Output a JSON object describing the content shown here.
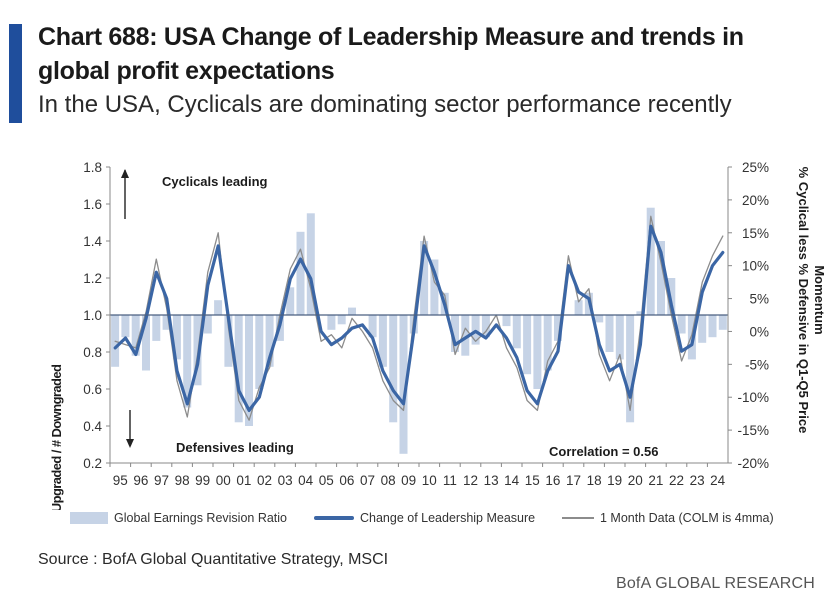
{
  "header": {
    "title": "Chart 688: USA Change of Leadership Measure and trends in global profit expectations",
    "subtitle": "In the USA, Cyclicals are dominating sector performance recently"
  },
  "footer": {
    "source": "Source : BofA Global Quantitative Strategy, MSCI",
    "brand": "BofA GLOBAL RESEARCH"
  },
  "colors": {
    "accent": "#1f4e9c",
    "revision_bars": "#c6d3e6",
    "leadership_line": "#3b66a5",
    "monthly_line": "#8c8c8c",
    "baseline": "#4a5f80"
  },
  "chart_data": {
    "type": "line",
    "title": "",
    "ylabel": "# Stocks Upgraded / # Downgraded",
    "y2label": "% Cyclical less % Defensive in Q1-Q5 Price Momentum",
    "ylim": [
      0.2,
      1.8
    ],
    "y_ticks": [
      "0.2",
      "0.4",
      "0.6",
      "0.8",
      "1.0",
      "1.2",
      "1.4",
      "1.6",
      "1.8"
    ],
    "y2lim": [
      -20,
      25
    ],
    "y2_ticks": [
      "-20%",
      "-15%",
      "-10%",
      "-5%",
      "0%",
      "5%",
      "10%",
      "15%",
      "20%",
      "25%"
    ],
    "x_ticks": [
      "95",
      "96",
      "97",
      "98",
      "99",
      "00",
      "01",
      "02",
      "03",
      "04",
      "05",
      "06",
      "07",
      "08",
      "09",
      "10",
      "11",
      "12",
      "13",
      "14",
      "15",
      "16",
      "17",
      "18",
      "19",
      "20",
      "21",
      "22",
      "23",
      "24"
    ],
    "baseline": 1.0,
    "annotations": {
      "top": "Cyclicals leading",
      "bottom": "Defensives leading",
      "correlation": "Correlation = 0.56"
    },
    "legend": {
      "placement": "bottom",
      "entries": [
        "Global Earnings Revision Ratio",
        "Change of Leadership Measure",
        "1 Month Data (COLM is 4mma)"
      ]
    },
    "series": [
      {
        "name": "Global Earnings Revision Ratio",
        "type": "bar",
        "axis": "left",
        "x": [
          1995.0,
          1995.5,
          1996.0,
          1996.5,
          1997.0,
          1997.5,
          1998.0,
          1998.5,
          1999.0,
          1999.5,
          2000.0,
          2000.5,
          2001.0,
          2001.5,
          2002.0,
          2002.5,
          2003.0,
          2003.5,
          2004.0,
          2004.5,
          2005.0,
          2005.5,
          2006.0,
          2006.5,
          2007.0,
          2007.5,
          2008.0,
          2008.5,
          2009.0,
          2009.5,
          2010.0,
          2010.5,
          2011.0,
          2011.5,
          2012.0,
          2012.5,
          2013.0,
          2013.5,
          2014.0,
          2014.5,
          2015.0,
          2015.5,
          2016.0,
          2016.5,
          2017.0,
          2017.5,
          2018.0,
          2018.5,
          2019.0,
          2019.5,
          2020.0,
          2020.5,
          2021.0,
          2021.5,
          2022.0,
          2022.5,
          2023.0,
          2023.5,
          2024.0,
          2024.5
        ],
        "values": [
          0.72,
          0.88,
          0.78,
          0.7,
          0.86,
          0.92,
          0.76,
          0.5,
          0.62,
          0.9,
          1.08,
          0.72,
          0.42,
          0.4,
          0.6,
          0.72,
          0.86,
          1.15,
          1.45,
          1.55,
          1.0,
          0.92,
          0.95,
          1.04,
          1.0,
          0.88,
          0.72,
          0.42,
          0.25,
          0.9,
          1.4,
          1.3,
          1.12,
          0.8,
          0.78,
          0.84,
          0.88,
          1.0,
          0.94,
          0.82,
          0.68,
          0.6,
          0.7,
          0.86,
          1.0,
          1.08,
          1.12,
          0.96,
          0.8,
          0.76,
          0.42,
          1.02,
          1.58,
          1.4,
          1.2,
          0.9,
          0.76,
          0.85,
          0.88,
          0.92
        ]
      },
      {
        "name": "Change of Leadership Measure",
        "type": "line",
        "axis": "right",
        "x": [
          1995.0,
          1995.5,
          1996.0,
          1996.5,
          1997.0,
          1997.5,
          1998.0,
          1998.5,
          1999.0,
          1999.5,
          2000.0,
          2000.5,
          2001.0,
          2001.5,
          2002.0,
          2002.5,
          2003.0,
          2003.5,
          2004.0,
          2004.5,
          2005.0,
          2005.5,
          2006.0,
          2006.5,
          2007.0,
          2007.5,
          2008.0,
          2008.5,
          2009.0,
          2009.5,
          2010.0,
          2010.5,
          2011.0,
          2011.5,
          2012.0,
          2012.5,
          2013.0,
          2013.5,
          2014.0,
          2014.5,
          2015.0,
          2015.5,
          2016.0,
          2016.5,
          2017.0,
          2017.5,
          2018.0,
          2018.5,
          2019.0,
          2019.5,
          2020.0,
          2020.5,
          2021.0,
          2021.5,
          2022.0,
          2022.5,
          2023.0,
          2023.5,
          2024.0,
          2024.5
        ],
        "values": [
          -2.5,
          -1.0,
          -3.5,
          2.0,
          9.0,
          5.0,
          -6.0,
          -11.0,
          -5.0,
          7.0,
          13.0,
          2.0,
          -9.0,
          -12.0,
          -10.0,
          -4.0,
          1.0,
          8.0,
          11.0,
          8.0,
          0.0,
          -2.0,
          -1.0,
          0.5,
          1.0,
          -1.0,
          -6.0,
          -9.0,
          -11.0,
          0.0,
          13.0,
          9.0,
          4.0,
          -2.0,
          -1.0,
          0.0,
          -1.0,
          1.0,
          -1.0,
          -4.0,
          -9.0,
          -11.0,
          -6.0,
          -3.0,
          10.0,
          6.0,
          5.0,
          -2.0,
          -6.0,
          -5.0,
          -10.0,
          -2.0,
          16.0,
          12.0,
          4.0,
          -3.0,
          -2.0,
          6.0,
          10.0,
          12.0
        ]
      },
      {
        "name": "1 Month Data (COLM is 4mma)",
        "type": "line",
        "axis": "right",
        "x": [
          1995.0,
          1995.5,
          1996.0,
          1996.5,
          1997.0,
          1997.5,
          1998.0,
          1998.5,
          1999.0,
          1999.5,
          2000.0,
          2000.5,
          2001.0,
          2001.5,
          2002.0,
          2002.5,
          2003.0,
          2003.5,
          2004.0,
          2004.5,
          2005.0,
          2005.5,
          2006.0,
          2006.5,
          2007.0,
          2007.5,
          2008.0,
          2008.5,
          2009.0,
          2009.5,
          2010.0,
          2010.5,
          2011.0,
          2011.5,
          2012.0,
          2012.5,
          2013.0,
          2013.5,
          2014.0,
          2014.5,
          2015.0,
          2015.5,
          2016.0,
          2016.5,
          2017.0,
          2017.5,
          2018.0,
          2018.5,
          2019.0,
          2019.5,
          2020.0,
          2020.5,
          2021.0,
          2021.5,
          2022.0,
          2022.5,
          2023.0,
          2023.5,
          2024.0,
          2024.5
        ],
        "values": [
          -1.5,
          -2.0,
          -2.5,
          3.0,
          11.0,
          3.5,
          -7.5,
          -13.0,
          -3.5,
          9.0,
          15.0,
          0.5,
          -10.5,
          -13.5,
          -8.5,
          -5.5,
          2.5,
          9.5,
          12.5,
          6.5,
          -1.5,
          -0.5,
          -2.5,
          2.0,
          0.0,
          -2.5,
          -7.5,
          -10.5,
          -12.0,
          2.0,
          14.5,
          7.5,
          5.5,
          -3.5,
          0.5,
          -1.5,
          0.0,
          2.5,
          -2.5,
          -5.5,
          -10.5,
          -12.0,
          -4.5,
          -1.5,
          11.5,
          4.5,
          6.5,
          -3.5,
          -7.5,
          -3.5,
          -12.0,
          0.5,
          17.5,
          10.5,
          2.5,
          -4.5,
          -0.5,
          7.5,
          11.5,
          14.5
        ]
      }
    ]
  }
}
